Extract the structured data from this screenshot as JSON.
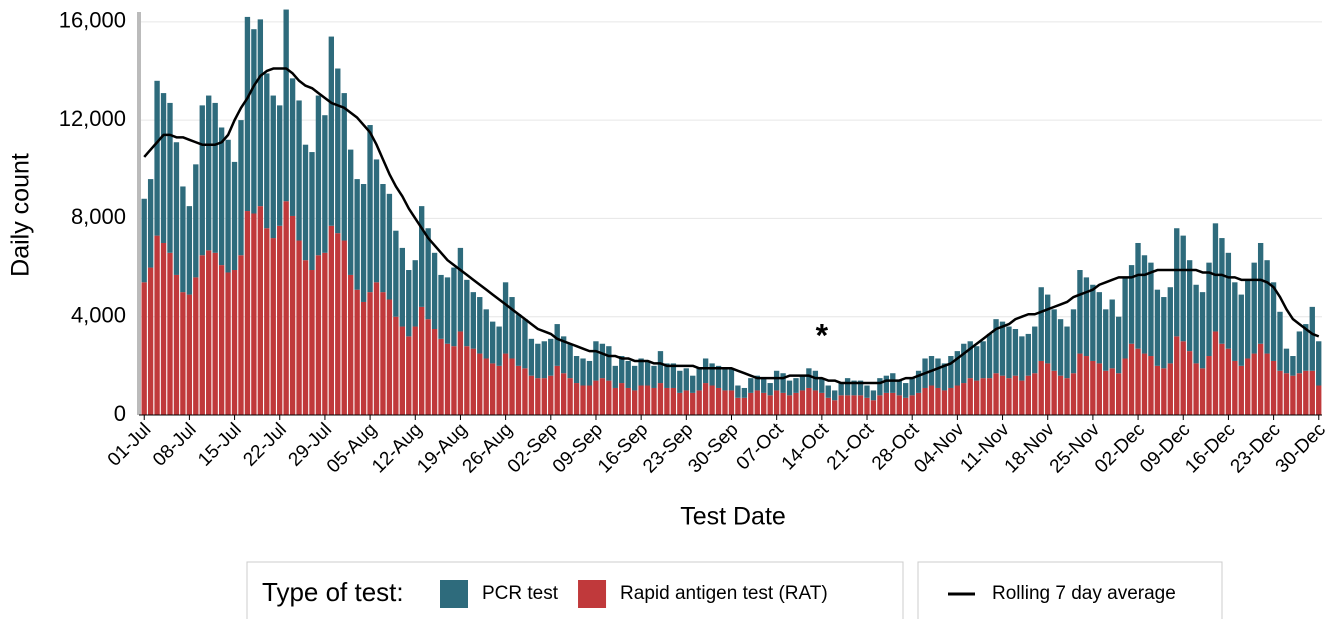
{
  "chart_data": {
    "type": "bar",
    "stacked": true,
    "y_label": "Daily count",
    "x_label": "Test Date",
    "legend_title": "Type of test:",
    "annotation": "*",
    "ylim": [
      0,
      16400
    ],
    "yticks": [
      0,
      {
        "value": 4000,
        "label": "4,000"
      },
      {
        "value": 8000,
        "label": "8,000"
      },
      {
        "value": 12000,
        "label": "12,000"
      },
      {
        "value": 16000,
        "label": "16,000"
      }
    ],
    "grid": true,
    "categories": [
      "01-Jul",
      null,
      null,
      null,
      null,
      null,
      null,
      "08-Jul",
      null,
      null,
      null,
      null,
      null,
      null,
      "15-Jul",
      null,
      null,
      null,
      null,
      null,
      null,
      "22-Jul",
      null,
      null,
      null,
      null,
      null,
      null,
      "29-Jul",
      null,
      null,
      null,
      null,
      null,
      null,
      "05-Aug",
      null,
      null,
      null,
      null,
      null,
      null,
      "12-Aug",
      null,
      null,
      null,
      null,
      null,
      null,
      "19-Aug",
      null,
      null,
      null,
      null,
      null,
      null,
      "26-Aug",
      null,
      null,
      null,
      null,
      null,
      null,
      "02-Sep",
      null,
      null,
      null,
      null,
      null,
      null,
      "09-Sep",
      null,
      null,
      null,
      null,
      null,
      null,
      "16-Sep",
      null,
      null,
      null,
      null,
      null,
      null,
      "23-Sep",
      null,
      null,
      null,
      null,
      null,
      null,
      "30-Sep",
      null,
      null,
      null,
      null,
      null,
      null,
      "07-Oct",
      null,
      null,
      null,
      null,
      null,
      null,
      "14-Oct",
      null,
      null,
      null,
      null,
      null,
      null,
      "21-Oct",
      null,
      null,
      null,
      null,
      null,
      null,
      "28-Oct",
      null,
      null,
      null,
      null,
      null,
      null,
      "04-Nov",
      null,
      null,
      null,
      null,
      null,
      null,
      "11-Nov",
      null,
      null,
      null,
      null,
      null,
      null,
      "18-Nov",
      null,
      null,
      null,
      null,
      null,
      null,
      "25-Nov",
      null,
      null,
      null,
      null,
      null,
      null,
      "02-Dec",
      null,
      null,
      null,
      null,
      null,
      null,
      "09-Dec",
      null,
      null,
      null,
      null,
      null,
      null,
      "16-Dec",
      null,
      null,
      null,
      null,
      null,
      null,
      "23-Dec",
      null,
      null,
      null,
      null,
      null,
      null,
      "30-Dec"
    ],
    "series": [
      {
        "name": "Rapid antigen test (RAT)",
        "color": "#c0393b",
        "values": [
          5400,
          6000,
          7300,
          7000,
          6600,
          5700,
          5000,
          4900,
          5600,
          6500,
          6700,
          6600,
          6100,
          5800,
          5900,
          6500,
          8300,
          8200,
          8500,
          7600,
          7200,
          7700,
          8700,
          8100,
          7100,
          6300,
          5900,
          6500,
          6600,
          7700,
          7400,
          7100,
          5700,
          5100,
          4600,
          5000,
          5400,
          5000,
          4700,
          4000,
          3600,
          3200,
          3600,
          4400,
          3900,
          3500,
          3100,
          2900,
          2800,
          3400,
          2800,
          2700,
          2500,
          2300,
          2100,
          2000,
          2500,
          2300,
          2000,
          1900,
          1600,
          1500,
          1500,
          1600,
          2000,
          1700,
          1500,
          1300,
          1200,
          1200,
          1400,
          1500,
          1400,
          1100,
          1300,
          1100,
          1000,
          1200,
          1200,
          1100,
          1300,
          1100,
          1100,
          900,
          1000,
          900,
          1000,
          1300,
          1200,
          1100,
          1000,
          1000,
          700,
          700,
          900,
          1000,
          900,
          800,
          1000,
          900,
          800,
          900,
          1000,
          1100,
          1000,
          900,
          700,
          600,
          800,
          800,
          800,
          800,
          700,
          600,
          800,
          900,
          900,
          800,
          700,
          800,
          900,
          1100,
          1200,
          1100,
          1000,
          1100,
          1200,
          1300,
          1500,
          1400,
          1500,
          1500,
          1700,
          1600,
          1500,
          1600,
          1400,
          1600,
          1700,
          2200,
          2100,
          1800,
          1600,
          1500,
          1700,
          2500,
          2400,
          2200,
          2100,
          1800,
          1900,
          1700,
          2300,
          2900,
          2700,
          2500,
          2400,
          2000,
          1900,
          2100,
          3200,
          3000,
          2600,
          2100,
          1900,
          2400,
          3400,
          2900,
          2700,
          2200,
          2000,
          2300,
          2500,
          2900,
          2500,
          2200,
          1800,
          1700,
          1600,
          1700,
          1800,
          1800,
          1200
        ]
      },
      {
        "name": "PCR test",
        "color": "#2e6b7c",
        "values": [
          3400,
          3600,
          6300,
          6100,
          6100,
          5400,
          4300,
          3600,
          4600,
          6100,
          6300,
          6100,
          5600,
          5400,
          4400,
          5500,
          7900,
          7500,
          7600,
          6300,
          5800,
          4900,
          7800,
          5600,
          5700,
          4700,
          4800,
          6500,
          5600,
          7700,
          6700,
          6000,
          5100,
          4500,
          4800,
          6800,
          5000,
          4400,
          4300,
          3500,
          3200,
          2700,
          2700,
          4100,
          3700,
          3100,
          2600,
          2700,
          3200,
          3400,
          2700,
          2300,
          2300,
          2000,
          1700,
          1600,
          2900,
          2500,
          2100,
          2000,
          1500,
          1400,
          1500,
          1500,
          1700,
          1500,
          1400,
          1100,
          1100,
          1000,
          1600,
          1400,
          1400,
          900,
          1100,
          1100,
          1000,
          1100,
          1000,
          900,
          1300,
          1000,
          1000,
          900,
          900,
          700,
          900,
          1000,
          900,
          900,
          900,
          900,
          500,
          400,
          600,
          600,
          600,
          500,
          800,
          800,
          600,
          600,
          600,
          800,
          800,
          600,
          500,
          400,
          500,
          700,
          600,
          600,
          500,
          400,
          700,
          700,
          800,
          600,
          600,
          700,
          900,
          1200,
          1200,
          1200,
          1100,
          1300,
          1400,
          1600,
          1500,
          1400,
          1500,
          1800,
          2200,
          2200,
          2100,
          1900,
          1800,
          1700,
          1900,
          3000,
          2800,
          2500,
          2300,
          2100,
          2600,
          3400,
          3200,
          3100,
          2900,
          2500,
          2800,
          2300,
          3300,
          3200,
          4300,
          4000,
          3800,
          3100,
          2900,
          3100,
          4400,
          4300,
          3700,
          3200,
          3100,
          3800,
          4400,
          4300,
          3900,
          3200,
          2900,
          3200,
          3700,
          4100,
          3800,
          3200,
          2400,
          1000,
          800,
          1700,
          1900,
          2600,
          1800
        ]
      },
      {
        "name": "Rolling 7 day average",
        "color": "#000000",
        "type": "line",
        "values": [
          10500,
          10800,
          11100,
          11400,
          11400,
          11300,
          11300,
          11200,
          11100,
          11000,
          11000,
          11000,
          11100,
          11400,
          12000,
          12500,
          12900,
          13400,
          13800,
          14000,
          14100,
          14100,
          14100,
          13900,
          13600,
          13400,
          13300,
          13100,
          12900,
          12700,
          12600,
          12500,
          12300,
          12100,
          11800,
          11500,
          11000,
          10400,
          9800,
          9300,
          8900,
          8400,
          8000,
          7600,
          7200,
          6900,
          6600,
          6300,
          6100,
          5900,
          5700,
          5500,
          5300,
          5100,
          4900,
          4700,
          4500,
          4300,
          4100,
          3900,
          3700,
          3500,
          3400,
          3300,
          3100,
          3000,
          2900,
          2800,
          2700,
          2600,
          2600,
          2500,
          2400,
          2400,
          2300,
          2300,
          2200,
          2200,
          2200,
          2100,
          2100,
          2000,
          2000,
          2000,
          2000,
          2000,
          1900,
          1900,
          1900,
          1900,
          1900,
          1900,
          1800,
          1700,
          1600,
          1500,
          1500,
          1500,
          1500,
          1500,
          1600,
          1600,
          1600,
          1600,
          1500,
          1500,
          1400,
          1400,
          1300,
          1300,
          1300,
          1300,
          1300,
          1300,
          1300,
          1400,
          1400,
          1400,
          1500,
          1500,
          1600,
          1700,
          1800,
          1900,
          2000,
          2100,
          2300,
          2500,
          2700,
          2900,
          3100,
          3300,
          3500,
          3600,
          3700,
          3900,
          4000,
          4100,
          4100,
          4200,
          4300,
          4400,
          4500,
          4600,
          4800,
          4900,
          5000,
          5100,
          5300,
          5400,
          5500,
          5600,
          5600,
          5600,
          5700,
          5700,
          5800,
          5900,
          5900,
          5900,
          5900,
          5900,
          5900,
          5900,
          5800,
          5800,
          5700,
          5700,
          5600,
          5600,
          5500,
          5500,
          5500,
          5500,
          5400,
          5200,
          4800,
          4300,
          3900,
          3700,
          3500,
          3300,
          3200
        ]
      }
    ]
  }
}
